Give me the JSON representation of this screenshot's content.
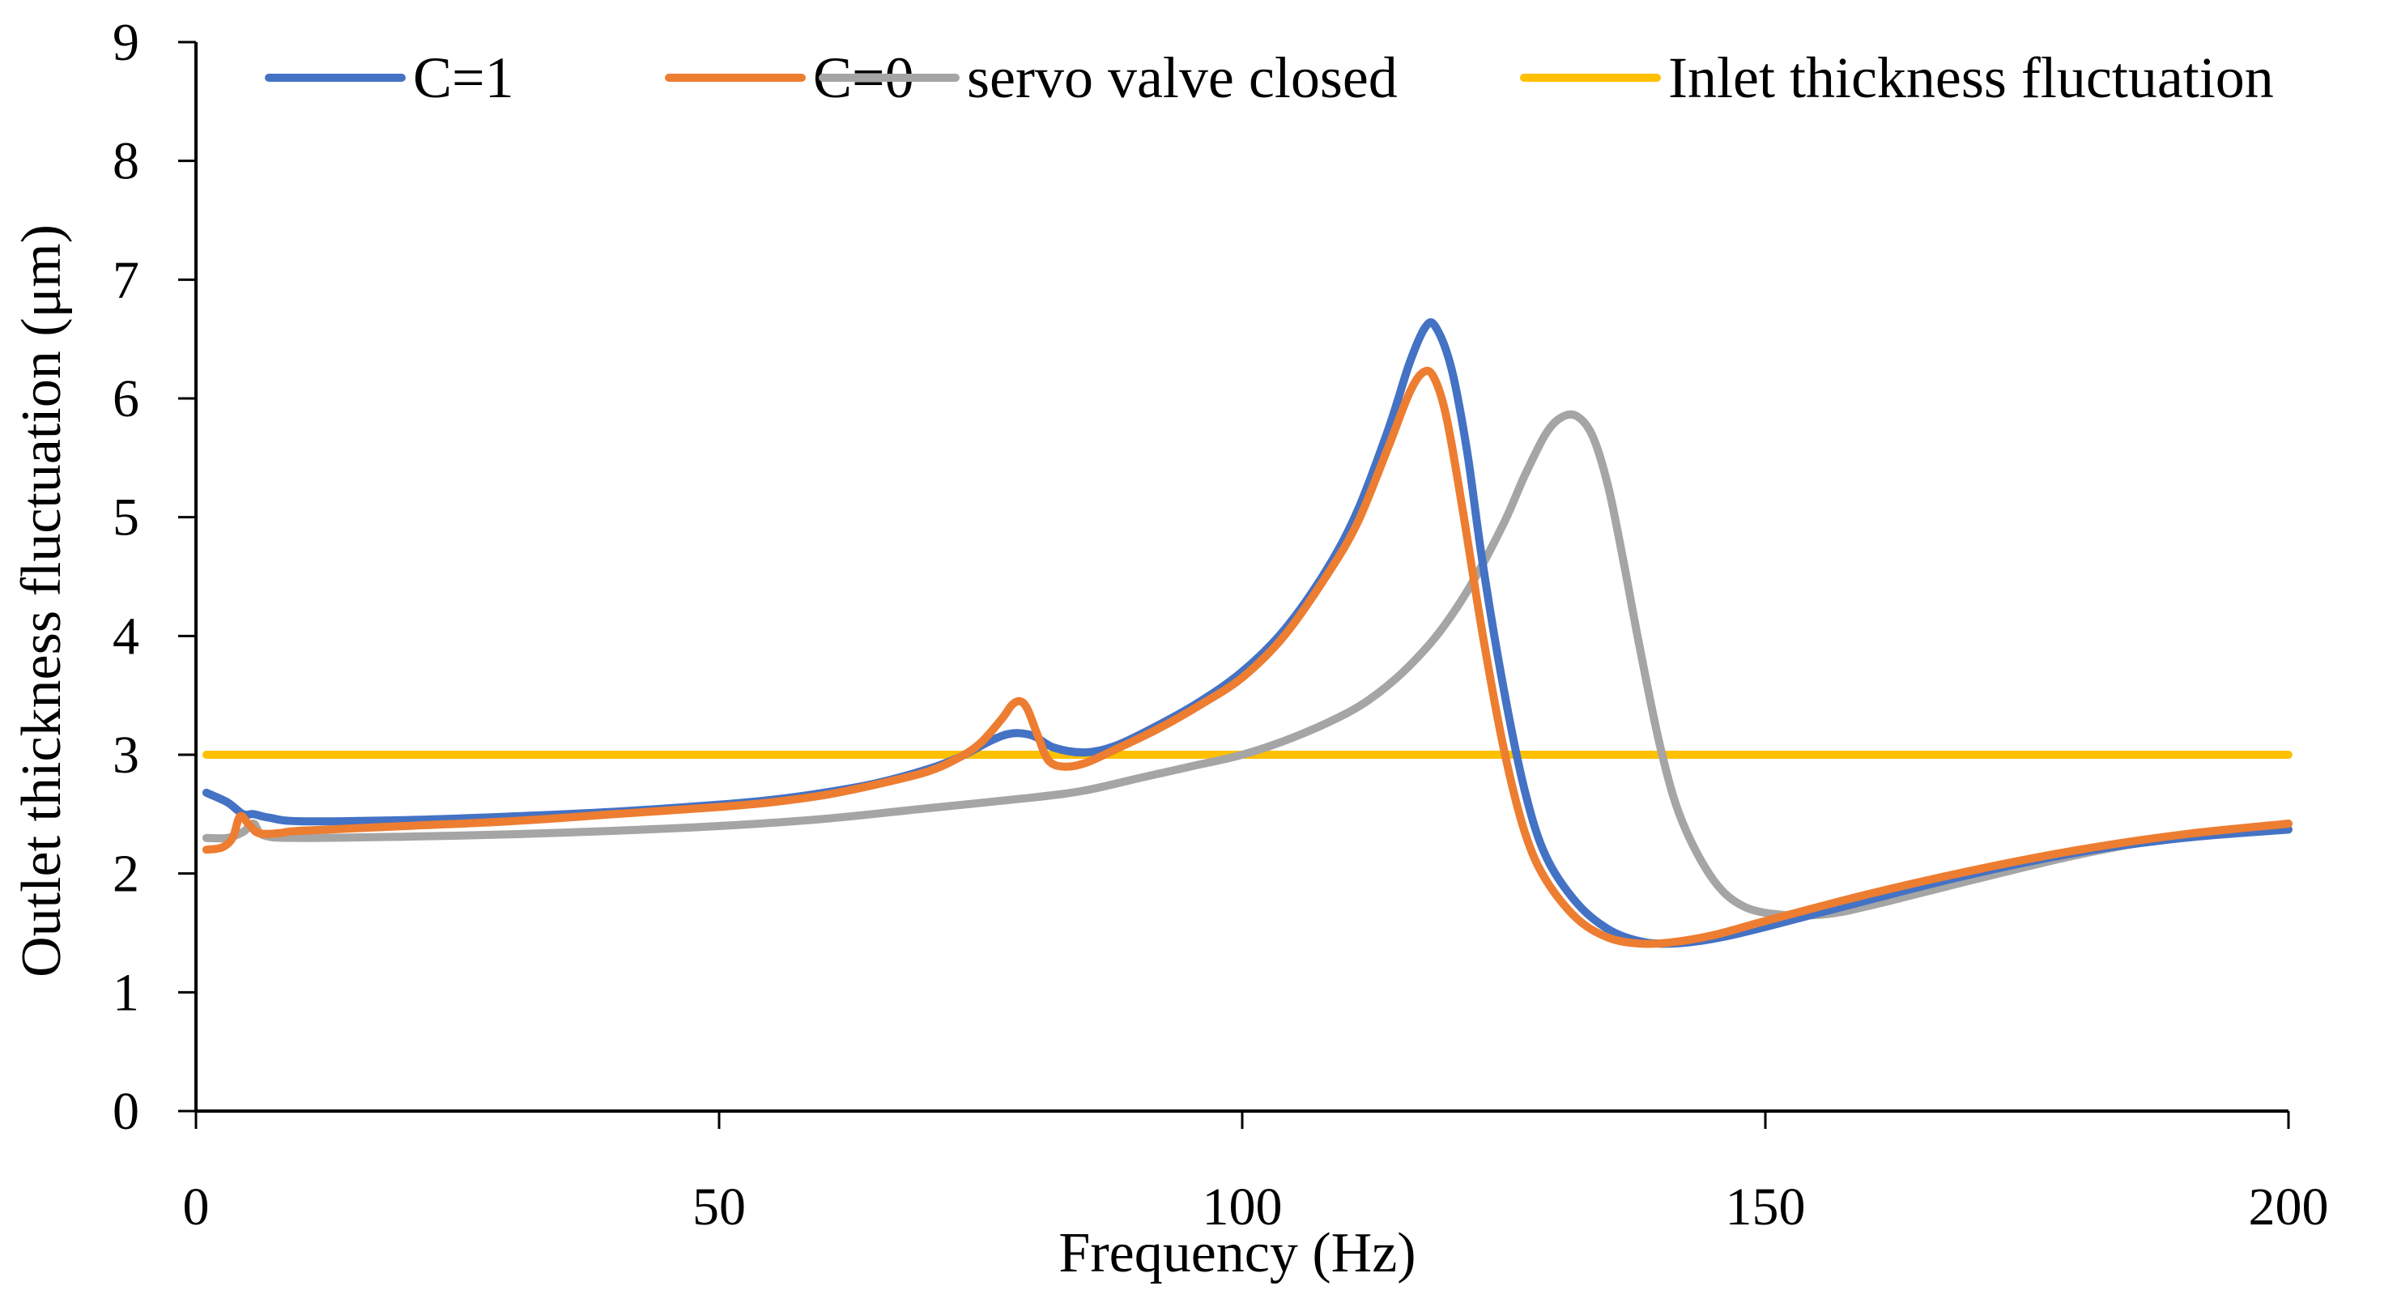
{
  "chart_data": {
    "type": "line",
    "title": "",
    "xlabel": "Frequency  (Hz)",
    "ylabel": "Outlet thickness fluctuation  (μm)",
    "xlim": [
      0,
      200
    ],
    "ylim": [
      0,
      9
    ],
    "x_ticks": [
      0,
      50,
      100,
      150,
      200
    ],
    "y_ticks": [
      0,
      1,
      2,
      3,
      4,
      5,
      6,
      7,
      8,
      9
    ],
    "grid": false,
    "legend_position": "top",
    "series": [
      {
        "name": "C=1",
        "color": "#4472C4",
        "x": [
          1,
          3,
          4.5,
          5.5,
          7,
          10,
          20,
          30,
          40,
          50,
          55,
          60,
          65,
          70,
          73,
          76,
          78,
          80,
          82,
          85,
          88,
          92,
          96,
          100,
          104,
          108,
          111,
          114,
          116,
          117.5,
          118.5,
          120,
          121.5,
          123,
          125,
          127,
          129,
          132,
          135,
          138,
          141,
          145,
          150,
          160,
          170,
          180,
          190,
          200
        ],
        "y": [
          2.68,
          2.6,
          2.5,
          2.5,
          2.47,
          2.44,
          2.45,
          2.48,
          2.52,
          2.58,
          2.62,
          2.68,
          2.76,
          2.88,
          2.98,
          3.12,
          3.18,
          3.16,
          3.06,
          3.02,
          3.08,
          3.25,
          3.45,
          3.7,
          4.05,
          4.55,
          5.05,
          5.75,
          6.3,
          6.6,
          6.6,
          6.25,
          5.55,
          4.6,
          3.55,
          2.7,
          2.15,
          1.75,
          1.53,
          1.43,
          1.41,
          1.45,
          1.55,
          1.78,
          2.0,
          2.18,
          2.3,
          2.37
        ]
      },
      {
        "name": "C=0",
        "color": "#ED7D31",
        "x": [
          1,
          2.5,
          3.5,
          4.2,
          5,
          6,
          8,
          10,
          20,
          30,
          40,
          50,
          55,
          60,
          65,
          70,
          73,
          75,
          77,
          78,
          78.8,
          79.5,
          80.5,
          81.5,
          83,
          85,
          88,
          92,
          96,
          100,
          104,
          108,
          111,
          114,
          116,
          117.3,
          118.3,
          119.5,
          121,
          123,
          125,
          127,
          129,
          132,
          135,
          138,
          141,
          145,
          150,
          160,
          170,
          180,
          190,
          200
        ],
        "y": [
          2.2,
          2.22,
          2.3,
          2.48,
          2.42,
          2.34,
          2.34,
          2.36,
          2.4,
          2.44,
          2.5,
          2.56,
          2.6,
          2.66,
          2.75,
          2.86,
          2.98,
          3.1,
          3.3,
          3.42,
          3.45,
          3.38,
          3.15,
          2.95,
          2.9,
          2.93,
          3.05,
          3.22,
          3.42,
          3.65,
          4.0,
          4.5,
          4.95,
          5.6,
          6.05,
          6.22,
          6.18,
          5.85,
          5.1,
          4.0,
          3.05,
          2.35,
          1.95,
          1.62,
          1.46,
          1.41,
          1.42,
          1.48,
          1.6,
          1.83,
          2.03,
          2.2,
          2.33,
          2.42
        ]
      },
      {
        "name": "servo valve closed",
        "color": "#A5A5A5",
        "x": [
          1,
          3,
          4.5,
          5.5,
          6.5,
          10,
          20,
          30,
          40,
          50,
          60,
          70,
          80,
          85,
          90,
          95,
          100,
          105,
          110,
          113,
          116,
          119,
          122,
          125,
          127,
          129,
          130.5,
          132,
          133.5,
          135,
          136.5,
          138,
          140,
          142,
          145,
          148,
          152,
          156,
          160,
          170,
          180,
          190,
          200
        ],
        "y": [
          2.3,
          2.3,
          2.35,
          2.42,
          2.32,
          2.3,
          2.31,
          2.33,
          2.36,
          2.4,
          2.46,
          2.55,
          2.64,
          2.7,
          2.8,
          2.9,
          3.0,
          3.15,
          3.35,
          3.52,
          3.75,
          4.05,
          4.45,
          4.95,
          5.35,
          5.7,
          5.84,
          5.85,
          5.68,
          5.25,
          4.6,
          3.9,
          3.05,
          2.45,
          1.95,
          1.72,
          1.65,
          1.66,
          1.73,
          1.95,
          2.16,
          2.32,
          2.42
        ]
      },
      {
        "name": "Inlet thickness fluctuation",
        "color": "#FFC000",
        "x": [
          1,
          200
        ],
        "y": [
          3.0,
          3.0
        ]
      }
    ]
  }
}
